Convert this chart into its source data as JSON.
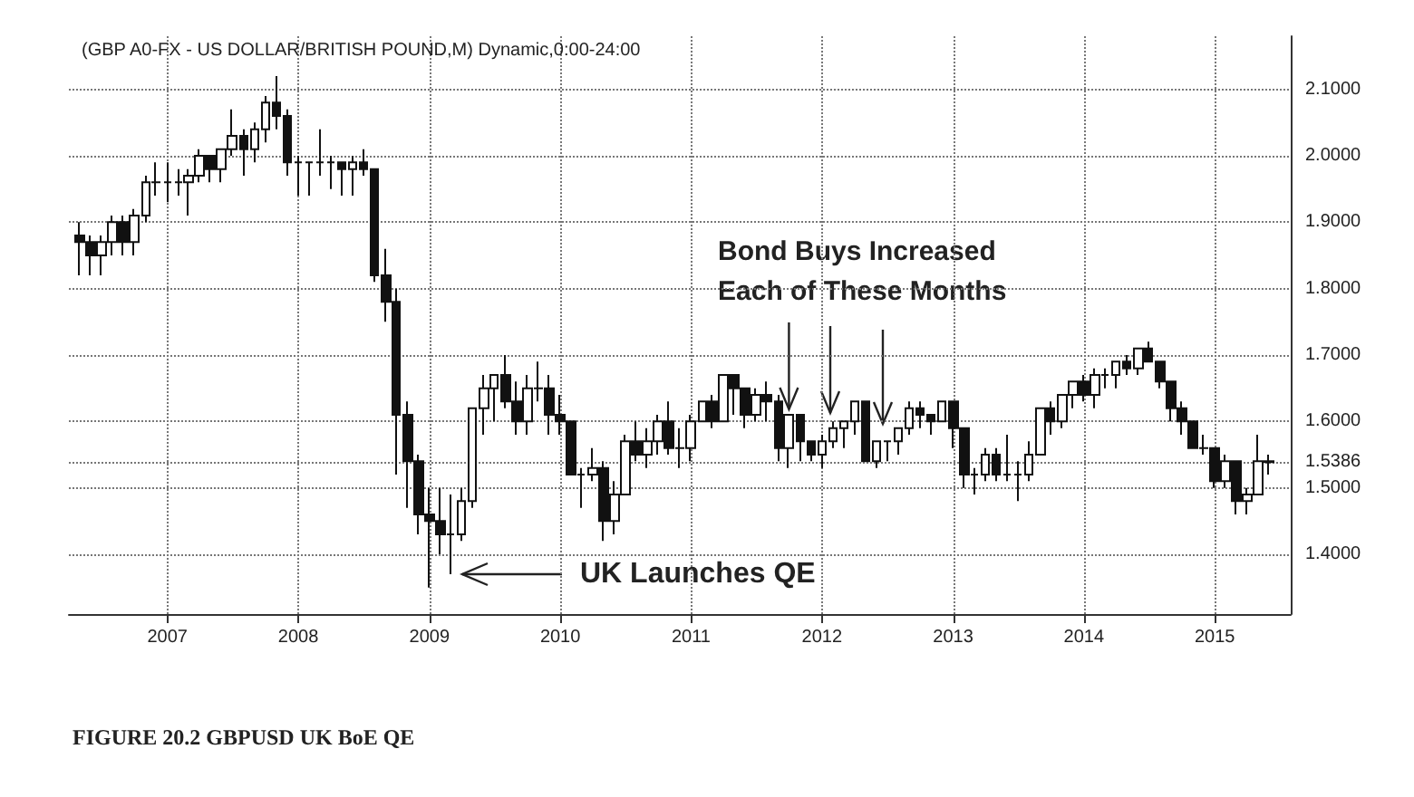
{
  "chart_data": {
    "type": "candlestick",
    "title": "(GBP A0-FX - US DOLLAR/BRITISH POUND,M) Dynamic,0:00-24:00",
    "x": [
      "2006-05",
      "2006-06",
      "2006-07",
      "2006-08",
      "2006-09",
      "2006-10",
      "2006-11",
      "2006-12",
      "2007-01",
      "2007-02",
      "2007-03",
      "2007-04",
      "2007-05",
      "2007-06",
      "2007-07",
      "2007-08",
      "2007-09",
      "2007-10",
      "2007-11",
      "2007-12",
      "2008-01",
      "2008-02",
      "2008-03",
      "2008-04",
      "2008-05",
      "2008-06",
      "2008-07",
      "2008-08",
      "2008-09",
      "2008-10",
      "2008-11",
      "2008-12",
      "2009-01",
      "2009-02",
      "2009-03",
      "2009-04",
      "2009-05",
      "2009-06",
      "2009-07",
      "2009-08",
      "2009-09",
      "2009-10",
      "2009-11",
      "2009-12",
      "2010-01",
      "2010-02",
      "2010-03",
      "2010-04",
      "2010-05",
      "2010-06",
      "2010-07",
      "2010-08",
      "2010-09",
      "2010-10",
      "2010-11",
      "2010-12",
      "2011-01",
      "2011-02",
      "2011-03",
      "2011-04",
      "2011-05",
      "2011-06",
      "2011-07",
      "2011-08",
      "2011-09",
      "2011-10",
      "2011-11",
      "2011-12",
      "2012-01",
      "2012-02",
      "2012-03",
      "2012-04",
      "2012-05",
      "2012-06",
      "2012-07",
      "2012-08",
      "2012-09",
      "2012-10",
      "2012-11",
      "2012-12",
      "2013-01",
      "2013-02",
      "2013-03",
      "2013-04",
      "2013-05",
      "2013-06",
      "2013-07",
      "2013-08",
      "2013-09",
      "2013-10",
      "2013-11",
      "2013-12",
      "2014-01",
      "2014-02",
      "2014-03",
      "2014-04",
      "2014-05",
      "2014-06",
      "2014-07",
      "2014-08",
      "2014-09",
      "2014-10",
      "2014-11",
      "2014-12",
      "2015-01",
      "2015-02",
      "2015-03",
      "2015-04",
      "2015-05",
      "2015-06"
    ],
    "ohlc": [
      [
        1.88,
        1.9,
        1.82,
        1.87
      ],
      [
        1.87,
        1.88,
        1.82,
        1.85
      ],
      [
        1.85,
        1.88,
        1.82,
        1.87
      ],
      [
        1.87,
        1.91,
        1.85,
        1.9
      ],
      [
        1.9,
        1.91,
        1.85,
        1.87
      ],
      [
        1.87,
        1.92,
        1.85,
        1.91
      ],
      [
        1.91,
        1.97,
        1.9,
        1.96
      ],
      [
        1.96,
        1.99,
        1.94,
        1.96
      ],
      [
        1.96,
        1.99,
        1.93,
        1.96
      ],
      [
        1.96,
        1.98,
        1.94,
        1.96
      ],
      [
        1.96,
        1.98,
        1.91,
        1.97
      ],
      [
        1.97,
        2.01,
        1.96,
        2.0
      ],
      [
        2.0,
        2.0,
        1.96,
        1.98
      ],
      [
        1.98,
        2.01,
        1.96,
        2.01
      ],
      [
        2.01,
        2.07,
        2.0,
        2.03
      ],
      [
        2.03,
        2.04,
        1.97,
        2.01
      ],
      [
        2.01,
        2.05,
        1.99,
        2.04
      ],
      [
        2.04,
        2.09,
        2.02,
        2.08
      ],
      [
        2.08,
        2.12,
        2.04,
        2.06
      ],
      [
        2.06,
        2.07,
        1.97,
        1.99
      ],
      [
        1.99,
        2.0,
        1.94,
        1.99
      ],
      [
        1.99,
        1.99,
        1.94,
        1.99
      ],
      [
        1.99,
        2.04,
        1.97,
        1.99
      ],
      [
        1.99,
        2.0,
        1.95,
        1.99
      ],
      [
        1.99,
        1.99,
        1.94,
        1.98
      ],
      [
        1.98,
        2.0,
        1.94,
        1.99
      ],
      [
        1.99,
        2.01,
        1.97,
        1.98
      ],
      [
        1.98,
        1.98,
        1.81,
        1.82
      ],
      [
        1.82,
        1.86,
        1.75,
        1.78
      ],
      [
        1.78,
        1.8,
        1.52,
        1.61
      ],
      [
        1.61,
        1.63,
        1.47,
        1.54
      ],
      [
        1.54,
        1.55,
        1.43,
        1.46
      ],
      [
        1.46,
        1.5,
        1.35,
        1.45
      ],
      [
        1.45,
        1.5,
        1.4,
        1.43
      ],
      [
        1.43,
        1.49,
        1.37,
        1.43
      ],
      [
        1.43,
        1.5,
        1.42,
        1.48
      ],
      [
        1.48,
        1.62,
        1.47,
        1.62
      ],
      [
        1.62,
        1.67,
        1.58,
        1.65
      ],
      [
        1.65,
        1.67,
        1.6,
        1.67
      ],
      [
        1.67,
        1.7,
        1.62,
        1.63
      ],
      [
        1.63,
        1.66,
        1.58,
        1.6
      ],
      [
        1.6,
        1.67,
        1.58,
        1.65
      ],
      [
        1.65,
        1.69,
        1.63,
        1.65
      ],
      [
        1.65,
        1.67,
        1.58,
        1.61
      ],
      [
        1.61,
        1.64,
        1.58,
        1.6
      ],
      [
        1.6,
        1.6,
        1.52,
        1.52
      ],
      [
        1.52,
        1.53,
        1.47,
        1.52
      ],
      [
        1.52,
        1.56,
        1.51,
        1.53
      ],
      [
        1.53,
        1.54,
        1.42,
        1.45
      ],
      [
        1.45,
        1.51,
        1.43,
        1.49
      ],
      [
        1.49,
        1.58,
        1.49,
        1.57
      ],
      [
        1.57,
        1.6,
        1.54,
        1.55
      ],
      [
        1.55,
        1.59,
        1.53,
        1.57
      ],
      [
        1.57,
        1.61,
        1.55,
        1.6
      ],
      [
        1.6,
        1.63,
        1.55,
        1.56
      ],
      [
        1.56,
        1.59,
        1.53,
        1.56
      ],
      [
        1.56,
        1.61,
        1.54,
        1.6
      ],
      [
        1.6,
        1.63,
        1.6,
        1.63
      ],
      [
        1.63,
        1.64,
        1.59,
        1.6
      ],
      [
        1.6,
        1.67,
        1.6,
        1.67
      ],
      [
        1.67,
        1.67,
        1.61,
        1.65
      ],
      [
        1.65,
        1.65,
        1.59,
        1.61
      ],
      [
        1.61,
        1.65,
        1.6,
        1.64
      ],
      [
        1.64,
        1.66,
        1.6,
        1.63
      ],
      [
        1.63,
        1.64,
        1.54,
        1.56
      ],
      [
        1.56,
        1.61,
        1.53,
        1.61
      ],
      [
        1.61,
        1.61,
        1.54,
        1.57
      ],
      [
        1.57,
        1.57,
        1.54,
        1.55
      ],
      [
        1.55,
        1.58,
        1.53,
        1.57
      ],
      [
        1.57,
        1.6,
        1.56,
        1.59
      ],
      [
        1.59,
        1.6,
        1.56,
        1.6
      ],
      [
        1.6,
        1.63,
        1.58,
        1.63
      ],
      [
        1.63,
        1.63,
        1.54,
        1.54
      ],
      [
        1.54,
        1.57,
        1.53,
        1.57
      ],
      [
        1.57,
        1.57,
        1.54,
        1.57
      ],
      [
        1.57,
        1.59,
        1.55,
        1.59
      ],
      [
        1.59,
        1.63,
        1.58,
        1.62
      ],
      [
        1.62,
        1.63,
        1.59,
        1.61
      ],
      [
        1.61,
        1.61,
        1.58,
        1.6
      ],
      [
        1.6,
        1.63,
        1.6,
        1.63
      ],
      [
        1.63,
        1.63,
        1.56,
        1.59
      ],
      [
        1.59,
        1.59,
        1.5,
        1.52
      ],
      [
        1.52,
        1.53,
        1.49,
        1.52
      ],
      [
        1.52,
        1.56,
        1.51,
        1.55
      ],
      [
        1.55,
        1.56,
        1.51,
        1.52
      ],
      [
        1.52,
        1.58,
        1.51,
        1.52
      ],
      [
        1.52,
        1.54,
        1.48,
        1.52
      ],
      [
        1.52,
        1.57,
        1.51,
        1.55
      ],
      [
        1.55,
        1.62,
        1.55,
        1.62
      ],
      [
        1.62,
        1.63,
        1.58,
        1.6
      ],
      [
        1.6,
        1.64,
        1.59,
        1.64
      ],
      [
        1.64,
        1.66,
        1.62,
        1.66
      ],
      [
        1.66,
        1.67,
        1.63,
        1.64
      ],
      [
        1.64,
        1.68,
        1.62,
        1.67
      ],
      [
        1.67,
        1.68,
        1.65,
        1.67
      ],
      [
        1.67,
        1.69,
        1.65,
        1.69
      ],
      [
        1.69,
        1.7,
        1.67,
        1.68
      ],
      [
        1.68,
        1.71,
        1.67,
        1.71
      ],
      [
        1.71,
        1.72,
        1.69,
        1.69
      ],
      [
        1.69,
        1.69,
        1.65,
        1.66
      ],
      [
        1.66,
        1.66,
        1.6,
        1.62
      ],
      [
        1.62,
        1.63,
        1.58,
        1.6
      ],
      [
        1.6,
        1.6,
        1.56,
        1.56
      ],
      [
        1.56,
        1.58,
        1.55,
        1.56
      ],
      [
        1.56,
        1.56,
        1.5,
        1.51
      ],
      [
        1.51,
        1.55,
        1.5,
        1.54
      ],
      [
        1.54,
        1.54,
        1.46,
        1.48
      ],
      [
        1.48,
        1.5,
        1.46,
        1.49
      ],
      [
        1.49,
        1.58,
        1.49,
        1.54
      ],
      [
        1.54,
        1.55,
        1.52,
        1.5386
      ]
    ],
    "xlim": [
      "2006-04",
      "2015-08"
    ],
    "xticks": [
      {
        "value": "2007",
        "label": "2007"
      },
      {
        "value": "2008",
        "label": "2008"
      },
      {
        "value": "2009",
        "label": "2009"
      },
      {
        "value": "2010",
        "label": "2010"
      },
      {
        "value": "2011",
        "label": "2011"
      },
      {
        "value": "2012",
        "label": "2012"
      },
      {
        "value": "2013",
        "label": "2013"
      },
      {
        "value": "2014",
        "label": "2014"
      },
      {
        "value": "2015",
        "label": "2015"
      }
    ],
    "ylim": [
      1.31,
      2.18
    ],
    "yticks": [
      {
        "value": 1.4,
        "label": "1.4000"
      },
      {
        "value": 1.5,
        "label": "1.5000"
      },
      {
        "value": 1.5386,
        "label": "1.5386"
      },
      {
        "value": 1.6,
        "label": "1.6000"
      },
      {
        "value": 1.7,
        "label": "1.7000"
      },
      {
        "value": 1.8,
        "label": "1.8000"
      },
      {
        "value": 1.9,
        "label": "1.9000"
      },
      {
        "value": 2.0,
        "label": "2.0000"
      },
      {
        "value": 2.1,
        "label": "2.1000"
      }
    ],
    "grid": true,
    "annotations": [
      "UK Launches QE",
      {
        "text": "Bond Buys Increased\nEach of These Months",
        "x": "2011-10",
        "y": 1.61
      },
      "FIGURE 20.2 GBPUSD UK BoE QE"
    ]
  }
}
